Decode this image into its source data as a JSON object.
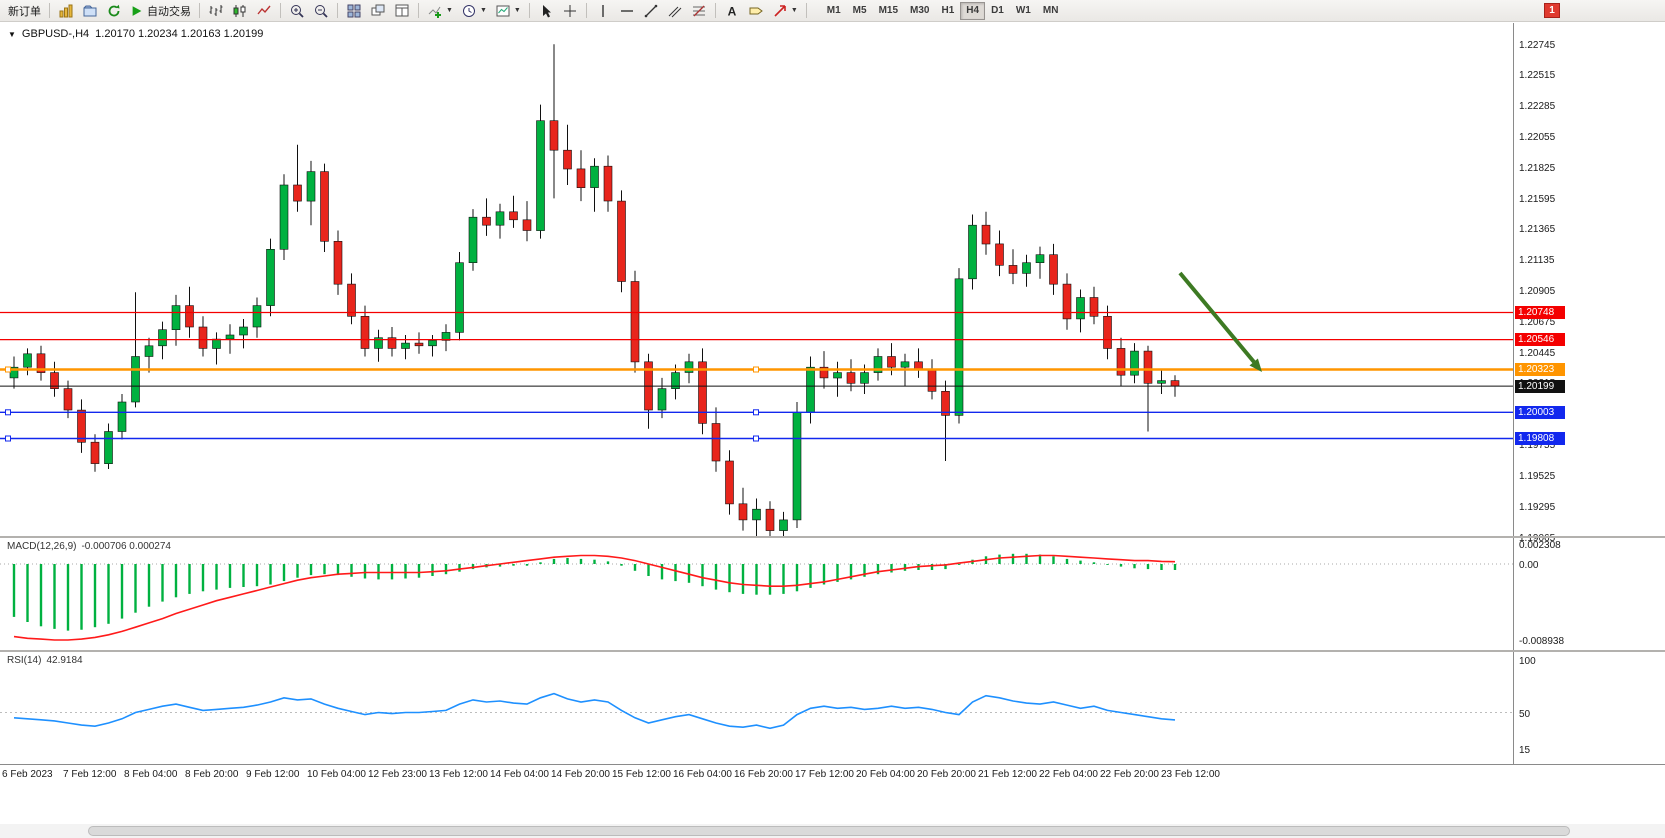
{
  "toolbar": {
    "new_order_label": "新订单",
    "autotrading_label": "自动交易",
    "timeframes": [
      "M1",
      "M5",
      "M15",
      "M30",
      "H1",
      "H4",
      "D1",
      "W1",
      "MN"
    ],
    "active_timeframe": "H4",
    "notification_badge": "1",
    "icons": [
      "new-chart-icon",
      "profiles-icon",
      "refresh-icon",
      "autotrading-play-icon",
      "bar-chart-icon",
      "candlestick-chart-icon",
      "line-chart-icon",
      "zoom-in-icon",
      "zoom-out-icon",
      "tile-windows-icon",
      "cascade-windows-icon",
      "window-grid-icon",
      "indicators-icon",
      "periods-clock-icon",
      "templates-icon",
      "cursor-icon",
      "crosshair-icon",
      "vertical-line-icon",
      "horizontal-line-icon",
      "trendline-icon",
      "channel-icon",
      "fibonacci-icon",
      "text-icon",
      "label-icon",
      "arrow-shapes-icon"
    ]
  },
  "chart_header": {
    "symbol_period": "GBPUSD-,H4",
    "ohlc": "1.20170 1.20234 1.20163 1.20199"
  },
  "price_axis": {
    "ticks": [
      "1.22745",
      "1.22515",
      "1.22285",
      "1.22055",
      "1.21825",
      "1.21595",
      "1.21365",
      "1.21135",
      "1.20905",
      "1.20675",
      "1.20445",
      "1.20215",
      "1.19985",
      "1.19755",
      "1.19525",
      "1.19295",
      "1.19065"
    ]
  },
  "levels": [
    {
      "value": "1.20748",
      "price": 1.20748,
      "color": "#f40000",
      "width": 1.3,
      "handles": false
    },
    {
      "value": "1.20546",
      "price": 1.20546,
      "color": "#f40000",
      "width": 1.3,
      "handles": false
    },
    {
      "value": "1.20323",
      "price": 1.20323,
      "color": "#ff9500",
      "width": 2.4,
      "handles": true
    },
    {
      "value": "1.20199",
      "price": 1.20199,
      "color": "#111111",
      "width": 1.0,
      "handles": false
    },
    {
      "value": "1.20003",
      "price": 1.20003,
      "color": "#1228ee",
      "width": 1.4,
      "handles": true
    },
    {
      "value": "1.19808",
      "price": 1.19808,
      "color": "#1228ee",
      "width": 1.4,
      "handles": true
    }
  ],
  "chart_data": {
    "type": "candlestick",
    "symbol": "GBPUSD-",
    "timeframe": "H4",
    "price_range": [
      1.19065,
      1.22745
    ],
    "time_labels": [
      "6 Feb 2023",
      "7 Feb 12:00",
      "8 Feb 04:00",
      "8 Feb 20:00",
      "9 Feb 12:00",
      "10 Feb 04:00",
      "12 Feb 23:00",
      "13 Feb 12:00",
      "14 Feb 04:00",
      "14 Feb 20:00",
      "15 Feb 12:00",
      "16 Feb 04:00",
      "16 Feb 20:00",
      "17 Feb 12:00",
      "20 Feb 04:00",
      "20 Feb 20:00",
      "21 Feb 12:00",
      "22 Feb 04:00",
      "22 Feb 20:00",
      "23 Feb 12:00"
    ],
    "candles": [
      [
        1.2026,
        1.2042,
        1.2018,
        1.2034
      ],
      [
        1.2034,
        1.2048,
        1.2028,
        1.2044
      ],
      [
        1.2044,
        1.205,
        1.2024,
        1.203
      ],
      [
        1.203,
        1.2038,
        1.2012,
        1.2018
      ],
      [
        1.2018,
        1.2024,
        1.1996,
        1.2002
      ],
      [
        1.2002,
        1.201,
        1.197,
        1.1978
      ],
      [
        1.1978,
        1.1984,
        1.1956,
        1.1962
      ],
      [
        1.1962,
        1.1992,
        1.1958,
        1.1986
      ],
      [
        1.1986,
        1.2014,
        1.198,
        1.2008
      ],
      [
        1.2008,
        1.209,
        1.2004,
        1.2042
      ],
      [
        1.2042,
        1.2056,
        1.203,
        1.205
      ],
      [
        1.205,
        1.2068,
        1.204,
        1.2062
      ],
      [
        1.2062,
        1.2088,
        1.205,
        1.208
      ],
      [
        1.208,
        1.2094,
        1.2056,
        1.2064
      ],
      [
        1.2064,
        1.2072,
        1.2042,
        1.2048
      ],
      [
        1.2048,
        1.206,
        1.2036,
        1.2055
      ],
      [
        1.2055,
        1.2066,
        1.2044,
        1.2058
      ],
      [
        1.2058,
        1.207,
        1.2048,
        1.2064
      ],
      [
        1.2064,
        1.2086,
        1.2056,
        1.208
      ],
      [
        1.208,
        1.213,
        1.2072,
        1.2122
      ],
      [
        1.2122,
        1.2178,
        1.2114,
        1.217
      ],
      [
        1.217,
        1.22,
        1.215,
        1.2158
      ],
      [
        1.2158,
        1.2188,
        1.214,
        1.218
      ],
      [
        1.218,
        1.2186,
        1.212,
        1.2128
      ],
      [
        1.2128,
        1.2136,
        1.2088,
        1.2096
      ],
      [
        1.2096,
        1.2104,
        1.2066,
        1.2072
      ],
      [
        1.2072,
        1.208,
        1.2042,
        1.2048
      ],
      [
        1.2048,
        1.2062,
        1.2038,
        1.2056
      ],
      [
        1.2056,
        1.2064,
        1.2042,
        1.2048
      ],
      [
        1.2048,
        1.2058,
        1.204,
        1.2052
      ],
      [
        1.2052,
        1.206,
        1.2044,
        1.205
      ],
      [
        1.205,
        1.2058,
        1.2042,
        1.2054
      ],
      [
        1.2054,
        1.2066,
        1.2046,
        1.206
      ],
      [
        1.206,
        1.212,
        1.2054,
        1.2112
      ],
      [
        1.2112,
        1.2152,
        1.2106,
        1.2146
      ],
      [
        1.2146,
        1.216,
        1.2132,
        1.214
      ],
      [
        1.214,
        1.2156,
        1.213,
        1.215
      ],
      [
        1.215,
        1.2162,
        1.2138,
        1.2144
      ],
      [
        1.2144,
        1.2158,
        1.2128,
        1.2136
      ],
      [
        1.2136,
        1.223,
        1.213,
        1.2218
      ],
      [
        1.2218,
        1.2275,
        1.216,
        1.2196
      ],
      [
        1.2196,
        1.2215,
        1.217,
        1.2182
      ],
      [
        1.2182,
        1.2196,
        1.2158,
        1.2168
      ],
      [
        1.2168,
        1.219,
        1.215,
        1.2184
      ],
      [
        1.2184,
        1.2192,
        1.215,
        1.2158
      ],
      [
        1.2158,
        1.2166,
        1.209,
        1.2098
      ],
      [
        1.2098,
        1.2106,
        1.203,
        1.2038
      ],
      [
        1.2038,
        1.2044,
        1.1988,
        1.2002
      ],
      [
        1.2002,
        1.2026,
        1.1996,
        1.2018
      ],
      [
        1.2018,
        1.2036,
        1.201,
        1.203
      ],
      [
        1.203,
        1.2044,
        1.2022,
        1.2038
      ],
      [
        1.2038,
        1.2048,
        1.1984,
        1.1992
      ],
      [
        1.1992,
        1.2004,
        1.1956,
        1.1964
      ],
      [
        1.1964,
        1.1972,
        1.1924,
        1.1932
      ],
      [
        1.1932,
        1.1944,
        1.1912,
        1.192
      ],
      [
        1.192,
        1.1936,
        1.1908,
        1.1928
      ],
      [
        1.1928,
        1.1934,
        1.1904,
        1.1912
      ],
      [
        1.1912,
        1.1926,
        1.19,
        1.192
      ],
      [
        1.192,
        1.2008,
        1.1914,
        1.2
      ],
      [
        1.2,
        1.2042,
        1.1992,
        1.2034
      ],
      [
        1.2034,
        1.2046,
        1.2018,
        1.2026
      ],
      [
        1.2026,
        1.2038,
        1.2012,
        1.203
      ],
      [
        1.203,
        1.204,
        1.2016,
        1.2022
      ],
      [
        1.2022,
        1.2036,
        1.2014,
        1.203
      ],
      [
        1.203,
        1.2048,
        1.2024,
        1.2042
      ],
      [
        1.2042,
        1.2052,
        1.2028,
        1.2034
      ],
      [
        1.2034,
        1.2044,
        1.202,
        1.2038
      ],
      [
        1.2038,
        1.2048,
        1.2026,
        1.2032
      ],
      [
        1.2032,
        1.204,
        1.201,
        1.2016
      ],
      [
        1.2016,
        1.2024,
        1.1964,
        1.1998
      ],
      [
        1.1998,
        1.2108,
        1.1992,
        1.21
      ],
      [
        1.21,
        1.2148,
        1.2092,
        1.214
      ],
      [
        1.214,
        1.215,
        1.2118,
        1.2126
      ],
      [
        1.2126,
        1.2136,
        1.2102,
        1.211
      ],
      [
        1.211,
        1.2122,
        1.2096,
        1.2104
      ],
      [
        1.2104,
        1.2118,
        1.2094,
        1.2112
      ],
      [
        1.2112,
        1.2124,
        1.21,
        1.2118
      ],
      [
        1.2118,
        1.2126,
        1.2088,
        1.2096
      ],
      [
        1.2096,
        1.2104,
        1.2062,
        1.207
      ],
      [
        1.207,
        1.2092,
        1.206,
        1.2086
      ],
      [
        1.2086,
        1.2094,
        1.2066,
        1.2072
      ],
      [
        1.2072,
        1.208,
        1.204,
        1.2048
      ],
      [
        1.2048,
        1.2056,
        1.202,
        1.2028
      ],
      [
        1.2028,
        1.2052,
        1.2022,
        1.2046
      ],
      [
        1.2046,
        1.205,
        1.1986,
        1.2022
      ],
      [
        1.2022,
        1.2032,
        1.2014,
        1.2024
      ],
      [
        1.2024,
        1.2028,
        1.2012,
        1.20199
      ]
    ],
    "indicators": {
      "macd": {
        "label": "MACD(12,26,9)",
        "current_values": "-0.000706 0.000274",
        "axis_ticks": [
          "0.002308",
          "0.00",
          "-0.008938"
        ],
        "hist": [
          -0.0062,
          -0.0068,
          -0.0073,
          -0.0076,
          -0.0078,
          -0.0077,
          -0.0074,
          -0.007,
          -0.0064,
          -0.0057,
          -0.005,
          -0.0044,
          -0.0039,
          -0.0035,
          -0.0032,
          -0.003,
          -0.0028,
          -0.0027,
          -0.0026,
          -0.0024,
          -0.002,
          -0.0016,
          -0.0013,
          -0.0012,
          -0.0013,
          -0.0015,
          -0.0017,
          -0.0018,
          -0.0018,
          -0.0017,
          -0.0016,
          -0.0014,
          -0.0012,
          -0.0009,
          -0.0006,
          -0.0004,
          -0.0003,
          -0.0002,
          -0.0002,
          0.0002,
          0.0006,
          0.0007,
          0.0006,
          0.0005,
          0.0003,
          -0.0002,
          -0.0008,
          -0.0014,
          -0.0018,
          -0.002,
          -0.0022,
          -0.0026,
          -0.003,
          -0.0033,
          -0.0035,
          -0.0036,
          -0.0036,
          -0.0035,
          -0.0032,
          -0.0028,
          -0.0024,
          -0.0021,
          -0.0018,
          -0.0015,
          -0.0012,
          -0.001,
          -0.0008,
          -0.0007,
          -0.0007,
          -0.0006,
          -0.0001,
          0.0005,
          0.0009,
          0.0011,
          0.0012,
          0.0012,
          0.0011,
          0.0009,
          0.0006,
          0.0004,
          0.0002,
          -0.0001,
          -0.0003,
          -0.0005,
          -0.0006,
          -0.0007,
          -0.000706
        ],
        "signal": [
          -0.0085,
          -0.0087,
          -0.0088,
          -0.0089,
          -0.0089,
          -0.0088,
          -0.0086,
          -0.0083,
          -0.0079,
          -0.0074,
          -0.0069,
          -0.0064,
          -0.0058,
          -0.0053,
          -0.0048,
          -0.0043,
          -0.0039,
          -0.0035,
          -0.0031,
          -0.0027,
          -0.0023,
          -0.0019,
          -0.0016,
          -0.0014,
          -0.0012,
          -0.0011,
          -0.001,
          -0.001,
          -0.001,
          -0.001,
          -0.001,
          -0.0009,
          -0.0008,
          -0.0006,
          -0.0004,
          -0.0002,
          0.0,
          0.0002,
          0.0004,
          0.0006,
          0.0008,
          0.0009,
          0.001,
          0.001,
          0.0009,
          0.0007,
          0.0004,
          0.0,
          -0.0004,
          -0.0008,
          -0.0012,
          -0.0016,
          -0.0019,
          -0.0022,
          -0.0024,
          -0.0025,
          -0.0026,
          -0.0026,
          -0.0025,
          -0.0023,
          -0.0021,
          -0.0018,
          -0.0015,
          -0.0012,
          -0.0009,
          -0.0007,
          -0.0005,
          -0.0003,
          -0.0002,
          -0.0001,
          0.0001,
          0.0003,
          0.0005,
          0.0007,
          0.0008,
          0.0009,
          0.001,
          0.001,
          0.0009,
          0.0008,
          0.0007,
          0.0006,
          0.0005,
          0.0004,
          0.0004,
          0.0003,
          0.000274
        ]
      },
      "rsi": {
        "label": "RSI(14)",
        "current_value": "42.9184",
        "axis_ticks": [
          "100",
          "50",
          "15"
        ],
        "values": [
          45,
          44,
          43,
          42,
          40,
          38,
          37,
          40,
          44,
          50,
          53,
          56,
          58,
          55,
          52,
          53,
          54,
          55,
          57,
          60,
          64,
          62,
          63,
          58,
          54,
          51,
          48,
          50,
          49,
          50,
          50,
          51,
          52,
          58,
          62,
          60,
          61,
          59,
          58,
          64,
          68,
          63,
          60,
          62,
          60,
          52,
          45,
          40,
          43,
          46,
          48,
          44,
          40,
          37,
          36,
          38,
          35,
          38,
          48,
          54,
          56,
          54,
          55,
          53,
          54,
          56,
          54,
          55,
          53,
          50,
          48,
          60,
          66,
          64,
          61,
          59,
          58,
          60,
          57,
          54,
          56,
          52,
          50,
          48,
          46,
          44,
          42.9184
        ]
      }
    },
    "annotations": [
      {
        "type": "arrow",
        "color": "#3d7a23",
        "direction": "down-right"
      }
    ]
  }
}
